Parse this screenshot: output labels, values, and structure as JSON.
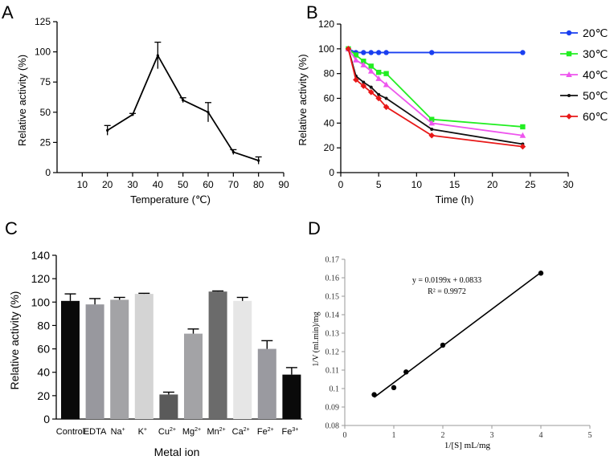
{
  "chart_data": [
    {
      "panel": "A",
      "type": "line",
      "title": "",
      "xlabel": "Temperature (℃)",
      "ylabel": "Relative activity (%)",
      "xlim": [
        0,
        90
      ],
      "ylim": [
        0,
        125
      ],
      "xticks": [
        10,
        20,
        30,
        40,
        50,
        60,
        70,
        80,
        90
      ],
      "yticks": [
        0,
        25,
        50,
        75,
        100,
        125
      ],
      "grid": false,
      "series": [
        {
          "name": "activity",
          "color": "#000000",
          "x": [
            20,
            30,
            40,
            50,
            60,
            70,
            80
          ],
          "y": [
            35,
            48,
            97,
            60,
            50,
            17,
            10
          ],
          "err": [
            4,
            1,
            11,
            2,
            8,
            2,
            3
          ]
        }
      ]
    },
    {
      "panel": "B",
      "type": "line",
      "title": "",
      "xlabel": "Time (h)",
      "ylabel": "Relative activity (%)",
      "xlim": [
        0,
        30
      ],
      "ylim": [
        0,
        120
      ],
      "xticks": [
        0,
        5,
        10,
        15,
        20,
        25,
        30
      ],
      "yticks": [
        0,
        20,
        40,
        60,
        80,
        100,
        120
      ],
      "grid": false,
      "legend_position": "right",
      "series": [
        {
          "name": "20℃",
          "color": "#1a3ff0",
          "marker": "circle",
          "x": [
            1,
            2,
            3,
            4,
            5,
            6,
            12,
            24
          ],
          "y": [
            100,
            97,
            97,
            97,
            97,
            97,
            97,
            97
          ]
        },
        {
          "name": "30℃",
          "color": "#22ee22",
          "marker": "square",
          "x": [
            1,
            2,
            3,
            4,
            5,
            6,
            12,
            24
          ],
          "y": [
            100,
            95,
            90,
            86,
            81,
            80,
            43,
            37
          ]
        },
        {
          "name": "40℃",
          "color": "#ee55ee",
          "marker": "triangle",
          "x": [
            1,
            2,
            3,
            4,
            5,
            6,
            12,
            24
          ],
          "y": [
            100,
            91,
            87,
            82,
            76,
            71,
            40,
            30
          ]
        },
        {
          "name": "50℃",
          "color": "#111111",
          "marker": "small",
          "x": [
            1,
            2,
            3,
            4,
            5,
            6,
            12,
            24
          ],
          "y": [
            100,
            78,
            73,
            69,
            63,
            60,
            35,
            23
          ]
        },
        {
          "name": "60℃",
          "color": "#e81818",
          "marker": "diamond",
          "x": [
            1,
            2,
            3,
            4,
            5,
            6,
            12,
            24
          ],
          "y": [
            100,
            75,
            70,
            65,
            60,
            53,
            30,
            21
          ]
        }
      ]
    },
    {
      "panel": "C",
      "type": "bar",
      "title": "",
      "xlabel": "Metal ion",
      "ylabel": "Relative activity (%)",
      "ylim": [
        0,
        140
      ],
      "yticks": [
        0,
        20,
        40,
        60,
        80,
        100,
        120,
        140
      ],
      "grid": false,
      "categories": [
        {
          "base": "Control",
          "sup": ""
        },
        {
          "base": "EDTA",
          "sup": ""
        },
        {
          "base": "Na",
          "sup": "+"
        },
        {
          "base": "K",
          "sup": "+"
        },
        {
          "base": "Cu",
          "sup": "2+"
        },
        {
          "base": "Mg",
          "sup": "2+"
        },
        {
          "base": "Mn",
          "sup": "2+"
        },
        {
          "base": "Ca",
          "sup": "2+"
        },
        {
          "base": "Fe",
          "sup": "2+"
        },
        {
          "base": "Fe",
          "sup": "3+"
        }
      ],
      "values": [
        101,
        98,
        102,
        107,
        21,
        73,
        109,
        101,
        60,
        38
      ],
      "err": [
        6,
        5,
        2,
        0.5,
        2,
        4,
        0.5,
        3,
        7,
        6
      ],
      "colors": [
        "#0a0a0a",
        "#98989e",
        "#a3a3a6",
        "#d4d4d4",
        "#5a5a5a",
        "#a3a3a6",
        "#6b6b6b",
        "#e6e6e6",
        "#9a9aa0",
        "#0a0a0a"
      ]
    },
    {
      "panel": "D",
      "type": "scatter",
      "title": "",
      "xlabel": "1/[S] mL/mg",
      "ylabel": "1/V (ml.min)/mg",
      "xlim": [
        0,
        5
      ],
      "ylim": [
        0.08,
        0.17
      ],
      "xticks": [
        0,
        1,
        2,
        3,
        4,
        5
      ],
      "yticks": [
        "0.08",
        "0.09",
        "0.1",
        "0.11",
        "0.12",
        "0.13",
        "0.14",
        "0.15",
        "0.16",
        "0.17"
      ],
      "grid": false,
      "x": [
        0.6,
        1.0,
        1.25,
        2.0,
        4.0
      ],
      "y": [
        0.0967,
        0.1005,
        0.109,
        0.1235,
        0.1625
      ],
      "trendline": {
        "slope": 0.0199,
        "intercept": 0.0833,
        "x_from": 0.6,
        "x_to": 4.0
      },
      "equation": "y = 0.0199x + 0.0833",
      "r2": "R² = 0.9972"
    }
  ],
  "panel_labels": [
    "A",
    "B",
    "C",
    "D"
  ]
}
